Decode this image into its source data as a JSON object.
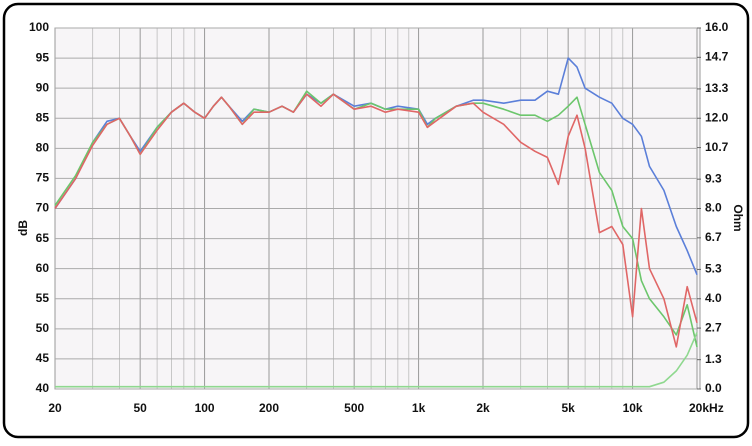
{
  "chart_data": {
    "type": "line",
    "xscale": "log",
    "grid": true,
    "xlabel": null,
    "ylabel": "dB",
    "y2label": "Ohm",
    "xlim": [
      20,
      20000
    ],
    "ylim": [
      40,
      100
    ],
    "y2lim": [
      0,
      16
    ],
    "xticks": [
      20,
      50,
      100,
      200,
      500,
      {
        "value": 1000,
        "label": "1k"
      },
      {
        "value": 2000,
        "label": "2k"
      },
      {
        "value": 5000,
        "label": "5k"
      },
      {
        "value": 10000,
        "label": "10k"
      },
      {
        "value": 20000,
        "label": "20kHz"
      }
    ],
    "xminor": [
      30,
      40,
      60,
      70,
      80,
      90,
      300,
      400,
      600,
      700,
      800,
      900,
      3000,
      4000,
      6000,
      7000,
      8000,
      9000
    ],
    "yticks": [
      40,
      45,
      50,
      55,
      60,
      65,
      70,
      75,
      80,
      85,
      90,
      95,
      100
    ],
    "y2ticks": [
      {
        "value": 0,
        "label": "0.0"
      },
      1.3,
      2.7,
      {
        "value": 4,
        "label": "4.0"
      },
      5.3,
      6.7,
      {
        "value": 8,
        "label": "8.0"
      },
      9.3,
      10.7,
      {
        "value": 12,
        "label": "12.0"
      },
      13.3,
      14.7,
      {
        "value": 16,
        "label": "16.0"
      }
    ],
    "x": [
      20,
      25,
      30,
      35,
      40,
      45,
      50,
      60,
      70,
      80,
      90,
      100,
      110,
      120,
      130,
      150,
      170,
      200,
      230,
      260,
      300,
      350,
      400,
      500,
      600,
      700,
      800,
      1000,
      1100,
      1200,
      1500,
      1800,
      2000,
      2500,
      3000,
      3500,
      4000,
      4500,
      5000,
      5500,
      6000,
      7000,
      8000,
      9000,
      10000,
      11000,
      12000,
      14000,
      16000,
      18000,
      20000
    ],
    "series": [
      {
        "color": "#5b7fd9",
        "values": [
          70,
          75,
          81,
          84.5,
          85,
          82,
          79.5,
          83.5,
          86,
          87.5,
          86,
          85,
          87,
          88.5,
          87,
          84.5,
          86.5,
          86,
          87,
          86,
          89,
          87.5,
          89,
          87,
          87.5,
          86.5,
          87,
          86.5,
          84,
          85,
          87,
          88,
          88,
          87.5,
          88,
          88,
          89.5,
          89,
          95,
          93.5,
          90,
          88.5,
          87.5,
          85,
          84,
          82,
          77,
          73,
          67,
          63,
          59
        ]
      },
      {
        "color": "#6cc66c",
        "values": [
          70.5,
          75.5,
          81,
          84,
          85,
          82,
          79,
          83.5,
          86,
          87.5,
          86,
          85,
          87,
          88.5,
          87,
          84,
          86.5,
          86,
          87,
          86,
          89.5,
          87.5,
          89,
          86.5,
          87.5,
          86.5,
          86.5,
          86.5,
          83.5,
          85,
          87,
          87.5,
          87.5,
          86.5,
          85.5,
          85.5,
          84.5,
          85.5,
          87,
          88.5,
          84,
          76,
          73,
          67,
          65,
          58,
          55,
          52,
          49,
          54,
          47
        ]
      },
      {
        "color": "#e06666",
        "values": [
          70,
          75,
          80.5,
          84,
          85,
          82,
          79,
          83,
          86,
          87.5,
          86,
          85,
          87,
          88.5,
          87,
          84,
          86,
          86,
          87,
          86,
          89,
          87,
          89,
          86.5,
          87,
          86,
          86.5,
          86,
          83.5,
          84.5,
          87,
          87.5,
          86,
          84,
          81,
          79.5,
          78.5,
          74,
          82,
          85.5,
          80,
          66,
          67,
          64,
          52,
          70,
          60,
          55,
          47,
          57,
          51
        ]
      },
      {
        "color": "#8fd88f",
        "axis": "y2",
        "values": [
          0.1,
          0.1,
          0.1,
          0.1,
          0.1,
          0.1,
          0.1,
          0.1,
          0.1,
          0.1,
          0.1,
          0.1,
          0.1,
          0.1,
          0.1,
          0.1,
          0.1,
          0.1,
          0.1,
          0.1,
          0.1,
          0.1,
          0.1,
          0.1,
          0.1,
          0.1,
          0.1,
          0.1,
          0.1,
          0.1,
          0.1,
          0.1,
          0.1,
          0.1,
          0.1,
          0.1,
          0.1,
          0.1,
          0.1,
          0.1,
          0.1,
          0.1,
          0.1,
          0.1,
          0.1,
          0.1,
          0.1,
          0.3,
          0.8,
          1.5,
          2.5
        ]
      }
    ]
  }
}
